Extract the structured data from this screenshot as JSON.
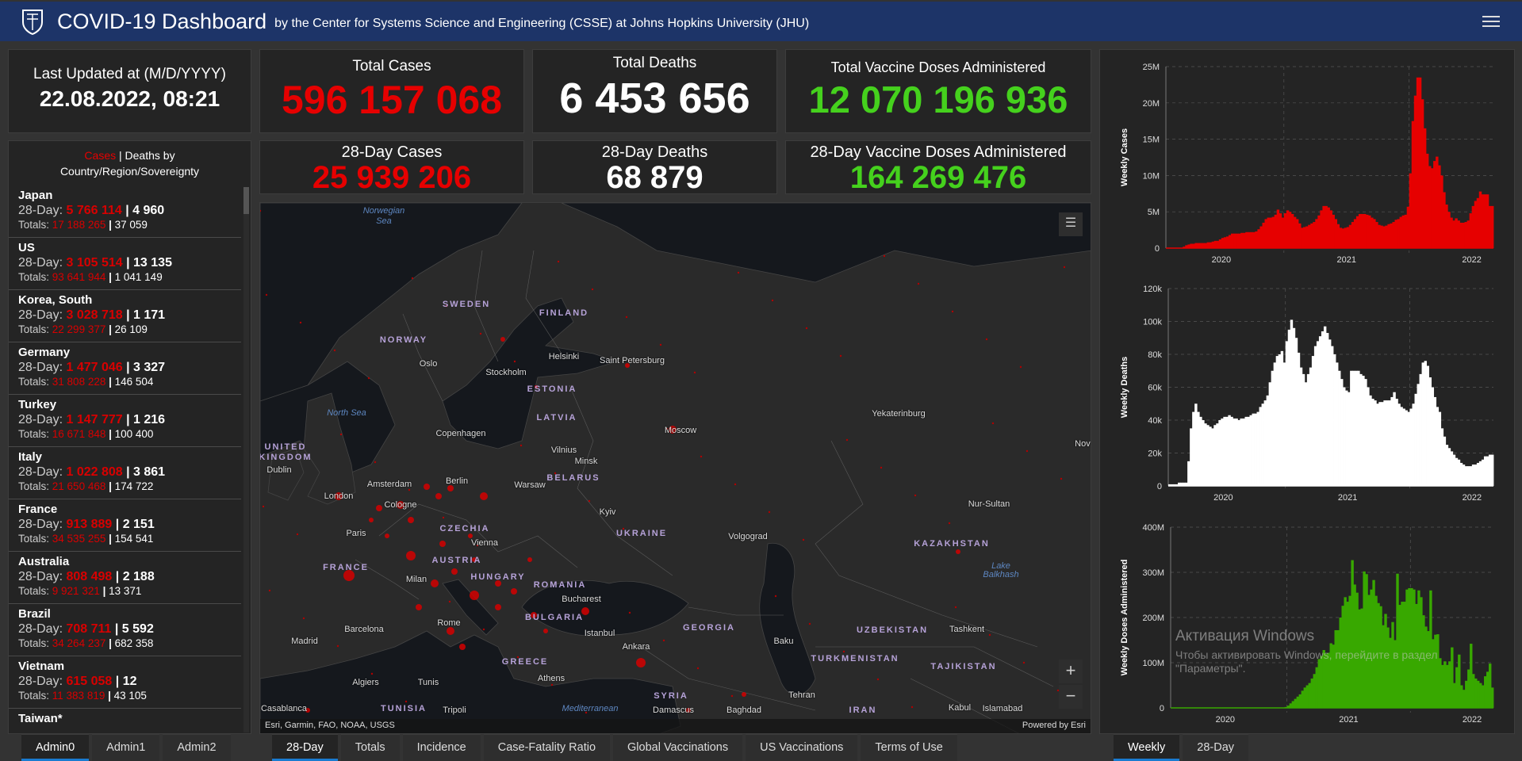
{
  "header": {
    "title": "COVID-19 Dashboard",
    "subtitle": "by the Center for Systems Science and Engineering (CSSE) at Johns Hopkins University (JHU)",
    "logo_icon": "jhu-shield-icon",
    "menu_icon": "hamburger-menu-icon"
  },
  "last_updated": {
    "label": "Last Updated at (M/D/YYYY)",
    "value": "22.08.2022, 08:21"
  },
  "totals": {
    "cases": {
      "label": "Total Cases",
      "value": "596 157 068"
    },
    "deaths": {
      "label": "Total Deaths",
      "value": "6 453 656"
    },
    "vaccines": {
      "label": "Total Vaccine Doses Administered",
      "value": "12 070 196 936"
    }
  },
  "day28": {
    "cases": {
      "label": "28-Day Cases",
      "value": "25 939 206"
    },
    "deaths": {
      "label": "28-Day Deaths",
      "value": "68 879"
    },
    "vaccines": {
      "label": "28-Day Vaccine Doses Administered",
      "value": "164 269 476"
    }
  },
  "colors": {
    "cases": "#e60000",
    "deaths": "#ffffff",
    "vaccines": "#45d11d",
    "vaccine_bars": "#38a800",
    "header": "#1d3468",
    "active_tab": "#1a7bd0"
  },
  "country_list": {
    "title_cases": "Cases",
    "title_sep": " | ",
    "title_rest": "Deaths by",
    "title_line2": "Country/Region/Sovereignty",
    "day28_prefix": "28-Day: ",
    "totals_prefix": "Totals: ",
    "items": [
      {
        "name": "Japan",
        "d28_cases": "5 766 114",
        "d28_deaths": "4 960",
        "tot_cases": "17 188 265",
        "tot_deaths": "37 059"
      },
      {
        "name": "US",
        "d28_cases": "3 105 514",
        "d28_deaths": "13 135",
        "tot_cases": "93 641 944",
        "tot_deaths": "1 041 149"
      },
      {
        "name": "Korea, South",
        "d28_cases": "3 028 718",
        "d28_deaths": "1 171",
        "tot_cases": "22 299 377",
        "tot_deaths": "26 109"
      },
      {
        "name": "Germany",
        "d28_cases": "1 477 046",
        "d28_deaths": "3 327",
        "tot_cases": "31 808 228",
        "tot_deaths": "146 504"
      },
      {
        "name": "Turkey",
        "d28_cases": "1 147 777",
        "d28_deaths": "1 216",
        "tot_cases": "16 671 848",
        "tot_deaths": "100 400"
      },
      {
        "name": "Italy",
        "d28_cases": "1 022 808",
        "d28_deaths": "3 861",
        "tot_cases": "21 650 468",
        "tot_deaths": "174 722"
      },
      {
        "name": "France",
        "d28_cases": "913 889",
        "d28_deaths": "2 151",
        "tot_cases": "34 535 255",
        "tot_deaths": "154 541"
      },
      {
        "name": "Australia",
        "d28_cases": "808 498",
        "d28_deaths": "2 188",
        "tot_cases": "9 921 321",
        "tot_deaths": "13 371"
      },
      {
        "name": "Brazil",
        "d28_cases": "708 711",
        "d28_deaths": "5 592",
        "tot_cases": "34 264 237",
        "tot_deaths": "682 358"
      },
      {
        "name": "Vietnam",
        "d28_cases": "615 058",
        "d28_deaths": "12",
        "tot_cases": "11 383 819",
        "tot_deaths": "43 105"
      },
      {
        "name": "Taiwan*"
      }
    ]
  },
  "map": {
    "labels": [
      {
        "text": "Norwegian",
        "type": "sea"
      },
      {
        "text": "Sea",
        "type": "sea"
      },
      {
        "text": "SWEDEN",
        "type": "country"
      },
      {
        "text": "FINLAND",
        "type": "country"
      },
      {
        "text": "NORWAY",
        "type": "country"
      },
      {
        "text": "Oslo",
        "type": "city"
      },
      {
        "text": "Stockholm",
        "type": "city"
      },
      {
        "text": "Helsinki",
        "type": "city"
      },
      {
        "text": "Saint Petersburg",
        "type": "city"
      },
      {
        "text": "ESTONIA",
        "type": "country"
      },
      {
        "text": "LATVIA",
        "type": "country"
      },
      {
        "text": "North Sea",
        "type": "sea"
      },
      {
        "text": "Copenhagen",
        "type": "city"
      },
      {
        "text": "Moscow",
        "type": "city"
      },
      {
        "text": "Yekaterinburg",
        "type": "city"
      },
      {
        "text": "Vilnius",
        "type": "city"
      },
      {
        "text": "Minsk",
        "type": "city"
      },
      {
        "text": "BELARUS",
        "type": "country"
      },
      {
        "text": "UNITED",
        "type": "country"
      },
      {
        "text": "KINGDOM",
        "type": "country"
      },
      {
        "text": "Dublin",
        "type": "city"
      },
      {
        "text": "Amsterdam",
        "type": "city"
      },
      {
        "text": "Berlin",
        "type": "city"
      },
      {
        "text": "Warsaw",
        "type": "city"
      },
      {
        "text": "London",
        "type": "city"
      },
      {
        "text": "Cologne",
        "type": "city"
      },
      {
        "text": "Kyiv",
        "type": "city"
      },
      {
        "text": "Nur-Sultan",
        "type": "city"
      },
      {
        "text": "CZECHIA",
        "type": "country"
      },
      {
        "text": "Paris",
        "type": "city"
      },
      {
        "text": "Vienna",
        "type": "city"
      },
      {
        "text": "UKRAINE",
        "type": "country"
      },
      {
        "text": "Volgograd",
        "type": "city"
      },
      {
        "text": "KAZAKHSTAN",
        "type": "country"
      },
      {
        "text": "AUSTRIA",
        "type": "country"
      },
      {
        "text": "HUNGARY",
        "type": "country"
      },
      {
        "text": "FRANCE",
        "type": "country"
      },
      {
        "text": "ROMANIA",
        "type": "country"
      },
      {
        "text": "Lake",
        "type": "sea"
      },
      {
        "text": "Balkhash",
        "type": "sea"
      },
      {
        "text": "Milan",
        "type": "city"
      },
      {
        "text": "Bucharest",
        "type": "city"
      },
      {
        "text": "Rome",
        "type": "city"
      },
      {
        "text": "BULGARIA",
        "type": "country"
      },
      {
        "text": "GEORGIA",
        "type": "country"
      },
      {
        "text": "UZBEKISTAN",
        "type": "country"
      },
      {
        "text": "Tashkent",
        "type": "city"
      },
      {
        "text": "Madrid",
        "type": "city"
      },
      {
        "text": "Barcelona",
        "type": "city"
      },
      {
        "text": "Istanbul",
        "type": "city"
      },
      {
        "text": "Baku",
        "type": "city"
      },
      {
        "text": "Ankara",
        "type": "city"
      },
      {
        "text": "TURKMENISTAN",
        "type": "country"
      },
      {
        "text": "GREECE",
        "type": "country"
      },
      {
        "text": "Athens",
        "type": "city"
      },
      {
        "text": "TAJIKISTAN",
        "type": "country"
      },
      {
        "text": "Algiers",
        "type": "city"
      },
      {
        "text": "Tunis",
        "type": "city"
      },
      {
        "text": "Tehran",
        "type": "city"
      },
      {
        "text": "Kabul",
        "type": "city"
      },
      {
        "text": "SYRIA",
        "type": "country"
      },
      {
        "text": "TUNISIA",
        "type": "country"
      },
      {
        "text": "Mediterranean",
        "type": "sea"
      },
      {
        "text": "Damascus",
        "type": "city"
      },
      {
        "text": "Islamabad",
        "type": "city"
      },
      {
        "text": "Casablanca",
        "type": "city"
      },
      {
        "text": "Baghdad",
        "type": "city"
      },
      {
        "text": "Tripoli",
        "type": "city"
      },
      {
        "text": "IRAN",
        "type": "country"
      },
      {
        "text": "Novo",
        "type": "city"
      }
    ],
    "legend_icon": "legend-list-icon",
    "zoom_in": "+",
    "zoom_out": "−",
    "attribution": "Esri, Garmin, FAO, NOAA, USGS",
    "powered_by": "Powered by Esri"
  },
  "tabs": {
    "admin": [
      {
        "label": "Admin0",
        "active": true
      },
      {
        "label": "Admin1"
      },
      {
        "label": "Admin2"
      }
    ],
    "map": [
      {
        "label": "28-Day",
        "active": true
      },
      {
        "label": "Totals"
      },
      {
        "label": "Incidence"
      },
      {
        "label": "Case-Fatality Ratio"
      },
      {
        "label": "Global Vaccinations"
      },
      {
        "label": "US Vaccinations"
      },
      {
        "label": "Terms of Use"
      }
    ],
    "chart": [
      {
        "label": "Weekly",
        "active": true
      },
      {
        "label": "28-Day"
      }
    ]
  },
  "watermark": {
    "line1": "Активация Windows",
    "line2": "Чтобы активировать Windows, перейдите в раздел \"Параметры\"."
  },
  "chart_data": [
    {
      "type": "bar",
      "ylabel": "Weekly Cases",
      "x_ticks": [
        "2020",
        "2021",
        "2022"
      ],
      "y_ticks": [
        "0",
        "5M",
        "10M",
        "15M",
        "20M",
        "25M"
      ],
      "ylim": [
        0,
        25
      ],
      "y_unit": "M",
      "grid": true,
      "color": "#e60000",
      "x_range": [
        "2020-01",
        "2022-08"
      ],
      "values": [
        0,
        0,
        0,
        0,
        0,
        0,
        0,
        0.2,
        0.4,
        0.5,
        0.6,
        0.6,
        0.7,
        0.7,
        0.7,
        0.7,
        0.7,
        0.8,
        0.8,
        0.9,
        1.0,
        1.0,
        1.2,
        1.4,
        1.5,
        1.6,
        1.8,
        2.0,
        2.0,
        2.0,
        2.0,
        2.1,
        2.1,
        2.2,
        2.2,
        2.2,
        2.2,
        2.3,
        2.6,
        3.0,
        3.5,
        4.0,
        4.2,
        4.2,
        4.3,
        4.6,
        5.3,
        4.8,
        4.2,
        4.8,
        5.2,
        5.0,
        4.7,
        4.3,
        4.0,
        3.4,
        2.8,
        2.9,
        3.0,
        3.2,
        3.4,
        3.6,
        4.0,
        4.5,
        5.2,
        5.8,
        5.8,
        5.6,
        5.2,
        4.6,
        4.0,
        3.3,
        2.8,
        2.7,
        2.8,
        2.9,
        3.2,
        3.6,
        4.0,
        4.4,
        4.7,
        4.7,
        4.7,
        4.6,
        4.5,
        4.2,
        4.0,
        3.6,
        3.2,
        3.1,
        3.0,
        3.1,
        3.3,
        3.4,
        3.6,
        3.9,
        4.0,
        4.3,
        4.5,
        4.6,
        5.7,
        10.3,
        17.5,
        21.0,
        23.5,
        23.5,
        20.5,
        16.5,
        13.0,
        11.3,
        11.0,
        12.0,
        12.6,
        11.4,
        10.0,
        7.7,
        6.0,
        5.0,
        4.2,
        3.8,
        4.1,
        3.8,
        3.5,
        3.5,
        3.6,
        3.8,
        4.8,
        5.8,
        6.5,
        6.9,
        7.8,
        7.4,
        7.4,
        7.4,
        5.8,
        5.8
      ]
    },
    {
      "type": "bar",
      "ylabel": "Weekly Deaths",
      "x_ticks": [
        "2020",
        "2021",
        "2022"
      ],
      "y_ticks": [
        "0",
        "20k",
        "40k",
        "60k",
        "80k",
        "100k",
        "120k"
      ],
      "ylim": [
        0,
        120
      ],
      "y_unit": "k",
      "grid": true,
      "color": "#ffffff",
      "x_range": [
        "2020-01",
        "2022-08"
      ],
      "values": [
        1,
        1,
        1,
        1,
        2,
        2,
        2,
        2,
        15,
        35,
        45,
        50,
        45,
        42,
        40,
        38,
        37,
        36,
        35,
        37,
        38,
        40,
        41,
        42,
        42,
        43,
        42,
        41,
        41,
        40,
        41,
        41,
        42,
        42,
        43,
        44,
        44,
        45,
        48,
        50,
        52,
        55,
        63,
        70,
        75,
        79,
        80,
        82,
        75,
        88,
        95,
        101,
        96,
        90,
        81,
        72,
        68,
        63,
        68,
        72,
        79,
        85,
        88,
        91,
        94,
        97,
        93,
        89,
        85,
        80,
        75,
        70,
        65,
        60,
        58,
        57,
        70,
        70,
        70,
        70,
        68,
        67,
        65,
        60,
        55,
        53,
        52,
        50,
        51,
        51,
        52,
        52,
        52,
        54,
        57,
        53,
        50,
        48,
        47,
        46,
        45,
        47,
        50,
        56,
        62,
        68,
        75,
        76,
        73,
        66,
        60,
        54,
        48,
        45,
        35,
        30,
        25,
        23,
        21,
        19,
        17,
        16,
        14,
        13,
        12,
        12,
        12,
        13,
        13,
        14,
        15,
        16,
        18,
        18,
        19,
        19
      ]
    },
    {
      "type": "bar",
      "ylabel": "Weekly Doses Administered",
      "x_ticks": [
        "2020",
        "2021",
        "2022"
      ],
      "y_ticks": [
        "0",
        "100M",
        "200M",
        "300M",
        "400M"
      ],
      "ylim": [
        0,
        400
      ],
      "y_unit": "M",
      "grid": true,
      "color": "#38a800",
      "x_range": [
        "2020-01",
        "2022-08"
      ],
      "values": [
        0,
        0,
        0,
        0,
        0,
        0,
        0,
        0,
        0,
        0,
        0,
        0,
        0,
        0,
        0,
        0,
        0,
        0,
        0,
        0,
        0,
        0,
        0,
        0,
        0,
        0,
        0,
        0,
        0,
        0,
        0,
        0,
        0,
        0,
        0,
        0,
        0,
        0,
        0,
        0,
        0,
        0,
        0,
        0,
        0,
        0,
        0,
        0,
        2,
        5,
        10,
        15,
        20,
        25,
        30,
        38,
        45,
        50,
        55,
        65,
        75,
        90,
        108,
        115,
        128,
        120,
        122,
        143,
        140,
        172,
        172,
        200,
        226,
        245,
        235,
        248,
        327,
        273,
        255,
        218,
        220,
        302,
        296,
        250,
        262,
        283,
        248,
        232,
        225,
        183,
        208,
        178,
        155,
        190,
        150,
        297,
        228,
        235,
        235,
        262,
        265,
        265,
        262,
        230,
        260,
        245,
        205,
        180,
        170,
        260,
        152,
        162,
        163,
        110,
        95,
        103,
        95,
        103,
        134,
        55,
        90,
        118,
        50,
        40,
        60,
        85,
        142,
        75,
        65,
        60,
        55,
        50,
        70,
        80,
        98,
        45
      ]
    }
  ]
}
